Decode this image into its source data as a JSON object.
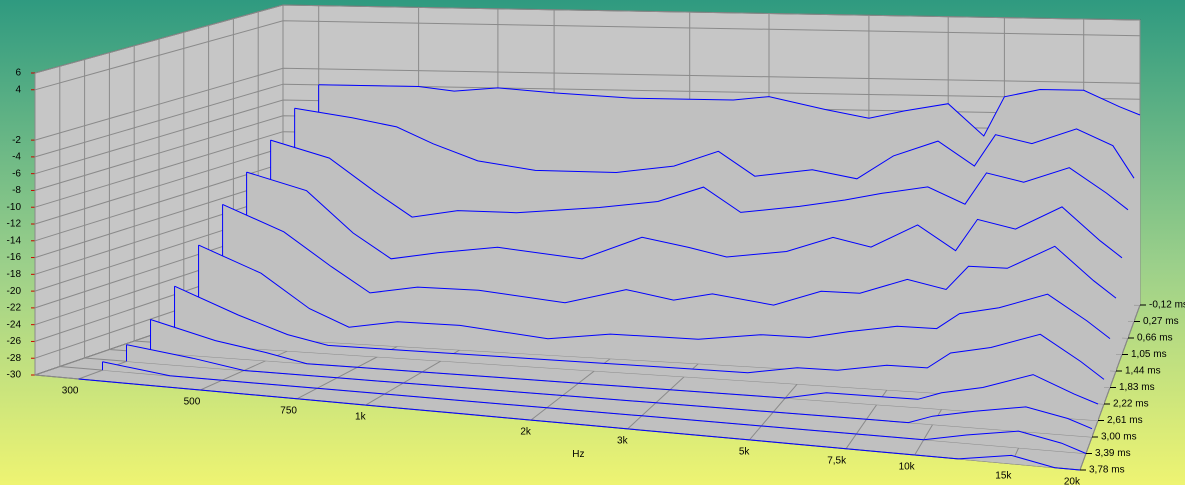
{
  "chart_data": {
    "type": "waterfall",
    "x_label": "Hz",
    "color": "#0000ff",
    "xlim": [
      250,
      20000
    ],
    "xticks": [
      {
        "value": 300,
        "label": "300"
      },
      {
        "value": 500,
        "label": "500"
      },
      {
        "value": 750,
        "label": "750"
      },
      {
        "value": 1000,
        "label": "1k"
      },
      {
        "value": 2000,
        "label": "2k"
      },
      {
        "value": 3000,
        "label": "3k"
      },
      {
        "value": 5000,
        "label": "5k"
      },
      {
        "value": 7500,
        "label": "7,5k"
      },
      {
        "value": 10000,
        "label": "10k"
      },
      {
        "value": 15000,
        "label": "15k"
      },
      {
        "value": 20000,
        "label": "20k"
      }
    ],
    "ylim": [
      -30,
      6
    ],
    "yticks": [
      6,
      4,
      -2,
      -4,
      -6,
      -8,
      -10,
      -12,
      -14,
      -16,
      -18,
      -20,
      -22,
      -24,
      -26,
      -28,
      -30
    ],
    "zlim": [
      -0.12,
      3.78
    ],
    "zticks": [
      {
        "value": -0.12,
        "label": "-0,12 ms"
      },
      {
        "value": 0.27,
        "label": "0,27 ms"
      },
      {
        "value": 0.66,
        "label": "0,66 ms"
      },
      {
        "value": 1.05,
        "label": "1,05 ms"
      },
      {
        "value": 1.44,
        "label": "1,44 ms"
      },
      {
        "value": 1.83,
        "label": "1,83 ms"
      },
      {
        "value": 2.22,
        "label": "2,22 ms"
      },
      {
        "value": 2.61,
        "label": "2,61 ms"
      },
      {
        "value": 3.0,
        "label": "3,00 ms"
      },
      {
        "value": 3.39,
        "label": "3,39 ms"
      },
      {
        "value": 3.78,
        "label": "3,78 ms"
      }
    ],
    "x": [
      300,
      400,
      500,
      600,
      750,
      1000,
      1500,
      2000,
      2500,
      3000,
      4000,
      5000,
      6000,
      7500,
      9000,
      10000,
      12000,
      15000,
      18000,
      20000
    ],
    "z": [
      -0.12,
      0.27,
      0.66,
      1.05,
      1.44,
      1.83,
      2.22,
      2.61,
      3.0,
      3.39,
      3.78
    ],
    "slices": [
      [
        -4,
        -4,
        -4,
        -4.5,
        -4,
        -4.5,
        -5,
        -5,
        -5,
        -4.5,
        -6,
        -7,
        -6,
        -5,
        -9,
        -4,
        -3,
        -3,
        -5,
        -6
      ],
      [
        -6,
        -7,
        -8,
        -10,
        -12,
        -13,
        -13,
        -12,
        -10,
        -13,
        -12,
        -13,
        -10,
        -8,
        -11,
        -7,
        -8,
        -6,
        -8,
        -12
      ],
      [
        -9,
        -11,
        -15,
        -18,
        -17,
        -17,
        -16,
        -15,
        -13,
        -16,
        -15,
        -14,
        -13,
        -12,
        -14,
        -10,
        -11,
        -9,
        -12,
        -14
      ],
      [
        -12,
        -14,
        -19,
        -22,
        -21,
        -20,
        -21,
        -18,
        -19,
        -20,
        -19,
        -17,
        -18,
        -15,
        -18,
        -14,
        -15,
        -12,
        -16,
        -18
      ],
      [
        -15,
        -18,
        -22,
        -25,
        -24,
        -24,
        -25,
        -23,
        -24,
        -23,
        -24,
        -22,
        -22,
        -20,
        -21,
        -18,
        -18,
        -15,
        -19,
        -21
      ],
      [
        -19,
        -22,
        -26,
        -28,
        -27,
        -27,
        -28,
        -27,
        -27,
        -27,
        -26,
        -26,
        -25,
        -24,
        -24,
        -22,
        -21,
        -19,
        -22,
        -24
      ],
      [
        -23,
        -26,
        -28,
        -29,
        -29,
        -29,
        -29,
        -29,
        -29,
        -29,
        -29,
        -28,
        -28,
        -27,
        -27,
        -25,
        -24,
        -22,
        -25,
        -27
      ],
      [
        -26,
        -28,
        -29,
        -30,
        -30,
        -30,
        -30,
        -30,
        -30,
        -30,
        -30,
        -30,
        -29,
        -29,
        -29,
        -28,
        -27,
        -25,
        -27,
        -28
      ],
      [
        -28,
        -29,
        -30,
        -30,
        -30,
        -30,
        -30,
        -30,
        -30,
        -30,
        -30,
        -30,
        -30,
        -30,
        -30,
        -29,
        -28,
        -27,
        -28,
        -29
      ],
      [
        -29,
        -30,
        -30,
        -30,
        -30,
        -30,
        -30,
        -30,
        -30,
        -30,
        -30,
        -30,
        -30,
        -30,
        -30,
        -30,
        -29,
        -28,
        -29,
        -30
      ],
      [
        -30,
        -30,
        -30,
        -30,
        -30,
        -30,
        -30,
        -30,
        -30,
        -30,
        -30,
        -30,
        -30,
        -30,
        -30,
        -30,
        -30,
        -29,
        -30,
        -30
      ]
    ]
  }
}
